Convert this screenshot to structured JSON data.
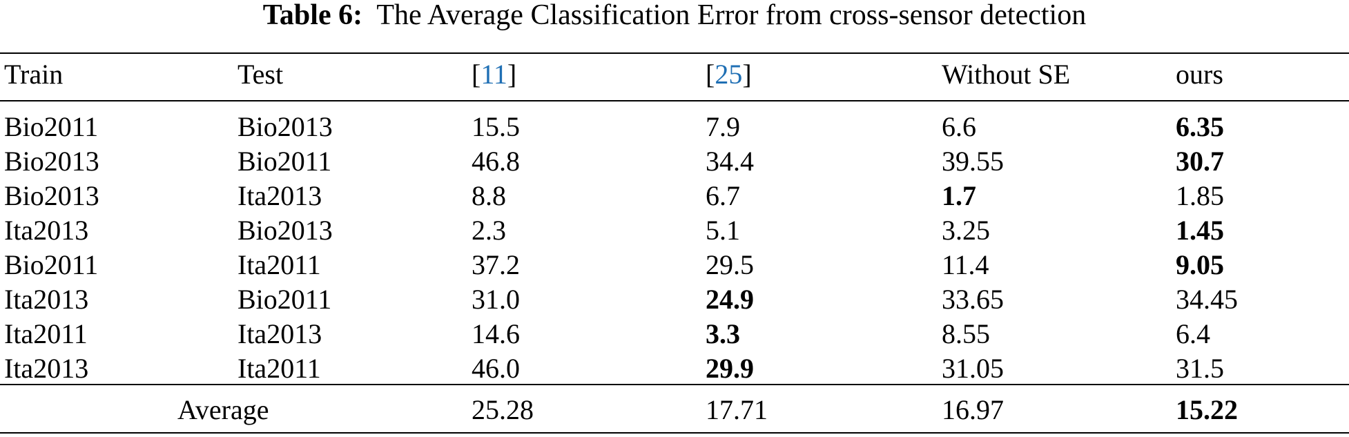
{
  "caption": {
    "label": "Table 6:",
    "text": "The Average Classification Error from cross-sensor detection"
  },
  "table": {
    "header": [
      {
        "text": "Train"
      },
      {
        "text": "Test"
      },
      {
        "before": "[",
        "ref": "11",
        "after": "]"
      },
      {
        "before": "[",
        "ref": "25",
        "after": "]"
      },
      {
        "text": "Without SE"
      },
      {
        "text": "ours"
      }
    ],
    "rows": [
      {
        "cells": [
          "Bio2011",
          "Bio2013",
          "15.5",
          "7.9",
          "6.6",
          "6.35"
        ],
        "bold": [
          5
        ]
      },
      {
        "cells": [
          "Bio2013",
          "Bio2011",
          "46.8",
          "34.4",
          "39.55",
          "30.7"
        ],
        "bold": [
          5
        ]
      },
      {
        "cells": [
          "Bio2013",
          "Ita2013",
          "8.8",
          "6.7",
          "1.7",
          "1.85"
        ],
        "bold": [
          4
        ]
      },
      {
        "cells": [
          "Ita2013",
          "Bio2013",
          "2.3",
          "5.1",
          "3.25",
          "1.45"
        ],
        "bold": [
          5
        ]
      },
      {
        "cells": [
          "Bio2011",
          "Ita2011",
          "37.2",
          "29.5",
          "11.4",
          "9.05"
        ],
        "bold": [
          5
        ]
      },
      {
        "cells": [
          "Ita2013",
          "Bio2011",
          "31.0",
          "24.9",
          "33.65",
          "34.45"
        ],
        "bold": [
          3
        ]
      },
      {
        "cells": [
          "Ita2011",
          "Ita2013",
          "14.6",
          "3.3",
          "8.55",
          "6.4"
        ],
        "bold": [
          3
        ]
      },
      {
        "cells": [
          "Ita2013",
          "Ita2011",
          "46.0",
          "29.9",
          "31.05",
          "31.5"
        ],
        "bold": [
          3
        ]
      }
    ],
    "average": {
      "cells": [
        "Average",
        "25.28",
        "17.71",
        "16.97",
        "15.22"
      ],
      "bold": [
        4
      ]
    }
  }
}
